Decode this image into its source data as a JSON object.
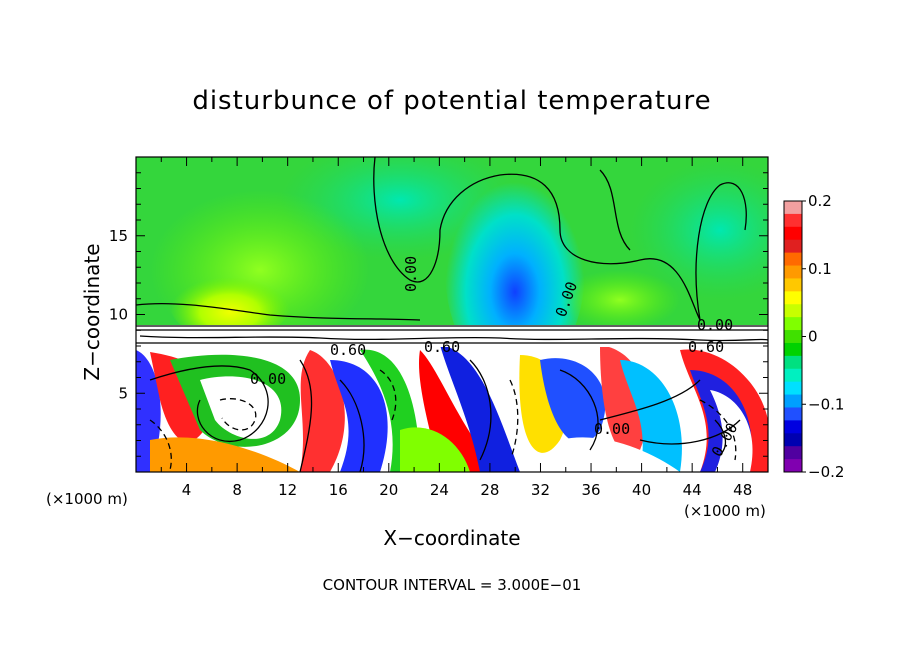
{
  "chart_data": {
    "type": "heatmap",
    "title": "disturbunce of potential temperature",
    "xlabel": "X−coordinate",
    "ylabel": "Z−coordinate",
    "x_unit": "(×1000 m)",
    "xlim": [
      0,
      50
    ],
    "ylim": [
      0,
      20
    ],
    "x_ticks": [
      4,
      8,
      12,
      16,
      20,
      24,
      28,
      32,
      36,
      40,
      44,
      48
    ],
    "y_ticks": [
      5,
      10,
      15
    ],
    "colorbar": {
      "range": [
        -0.2,
        0.2
      ],
      "tick_labels": [
        "0.2",
        "0.1",
        "0",
        "−0.1",
        "−0.2"
      ],
      "tick_values": [
        0.2,
        0.1,
        0,
        -0.1,
        -0.2
      ],
      "colors": [
        "#f2a0a0",
        "#ff3030",
        "#ff0000",
        "#e02020",
        "#ff6a00",
        "#ff9a00",
        "#ffc800",
        "#ffff00",
        "#c8ff00",
        "#80ff00",
        "#40e000",
        "#00d200",
        "#00e080",
        "#00f0c0",
        "#00e0ff",
        "#00a0ff",
        "#2050ff",
        "#0000e0",
        "#0000b0",
        "#5000a0",
        "#8000b0"
      ]
    },
    "contour_labels": [
      "0.00",
      "0.00",
      "0.00",
      "0.60",
      "0.60",
      "0.60",
      "0.00",
      "0.00",
      "0.00"
    ],
    "contour_interval": "CONTOUR INTERVAL = 3.000E−01"
  },
  "colors": {
    "background_upper": "#30d040",
    "background_lower": "#ffffff"
  }
}
